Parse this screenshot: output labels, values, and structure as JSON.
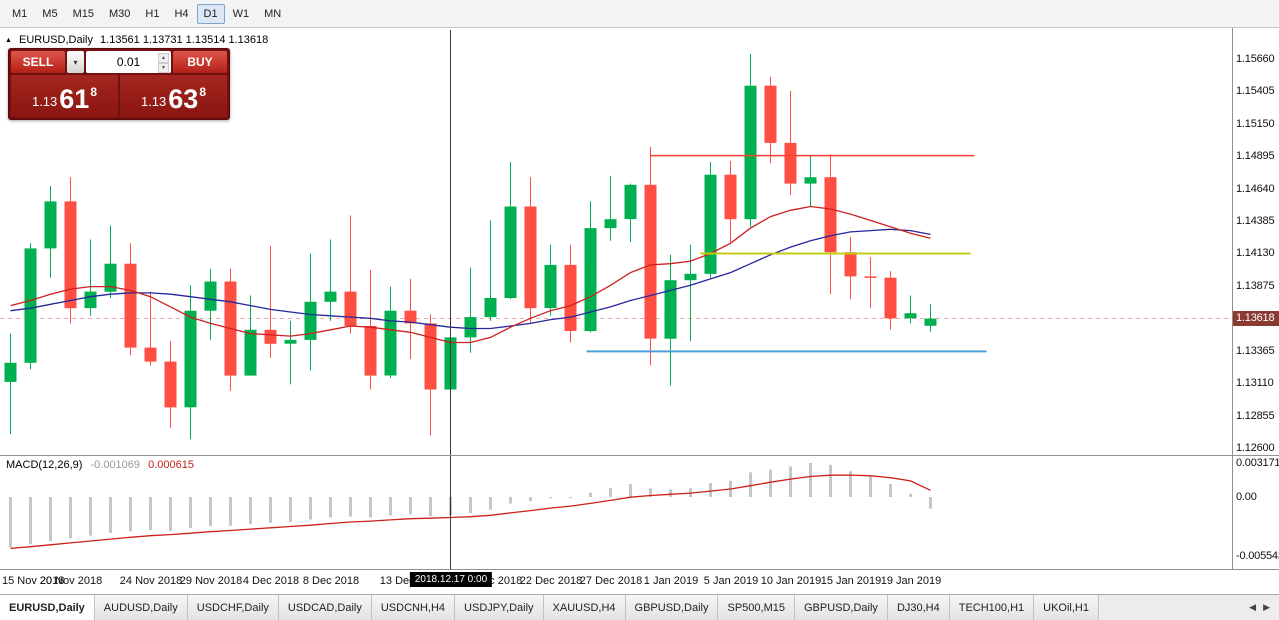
{
  "toolbar": {
    "timeframes": [
      "M1",
      "M5",
      "M15",
      "M30",
      "H1",
      "H4",
      "D1",
      "W1",
      "MN"
    ],
    "active": "D1"
  },
  "chart": {
    "symbol_label": "EURUSD,Daily",
    "ohlc_text": "1.13561 1.13731 1.13514 1.13618"
  },
  "trade_panel": {
    "sell_label": "SELL",
    "buy_label": "BUY",
    "lot": "0.01",
    "sell_price": {
      "base": "1.13",
      "pips": "61",
      "point": "8"
    },
    "buy_price": {
      "base": "1.13",
      "pips": "63",
      "point": "8"
    }
  },
  "macd_label": {
    "name": "MACD(12,26,9)",
    "main": "-0.001069",
    "signal": "0.000615"
  },
  "price_axis_ticks": [
    {
      "t": "1.15660",
      "v": 1.1566
    },
    {
      "t": "1.15405",
      "v": 1.15405
    },
    {
      "t": "1.15150",
      "v": 1.1515
    },
    {
      "t": "1.14895",
      "v": 1.14895
    },
    {
      "t": "1.14640",
      "v": 1.1464
    },
    {
      "t": "1.14385",
      "v": 1.14385
    },
    {
      "t": "1.14130",
      "v": 1.1413
    },
    {
      "t": "1.13875",
      "v": 1.13875
    },
    {
      "t": "1.13365",
      "v": 1.13365
    },
    {
      "t": "1.13110",
      "v": 1.1311
    },
    {
      "t": "1.12855",
      "v": 1.12855
    },
    {
      "t": "1.12600",
      "v": 1.126
    }
  ],
  "price_badge": {
    "t": "1.13618",
    "v": 1.13618,
    "bg": "#8b3a32"
  },
  "macd_axis_ticks": [
    {
      "t": "0.003171",
      "v": 0.003171
    },
    {
      "t": "0.00",
      "v": 0
    },
    {
      "t": "-0.005543",
      "v": -0.005543
    }
  ],
  "time_axis": {
    "labels": [
      {
        "i": 0,
        "t": "15 Nov 2018"
      },
      {
        "i": 3,
        "t": "20 Nov 2018"
      },
      {
        "i": 7,
        "t": "24 Nov 2018"
      },
      {
        "i": 10,
        "t": "29 Nov 2018"
      },
      {
        "i": 13,
        "t": "4 Dec 2018"
      },
      {
        "i": 16,
        "t": "8 Dec 2018"
      },
      {
        "i": 20,
        "t": "13 Dec 2018"
      },
      {
        "i": 24,
        "t": "19 Dec 2018"
      },
      {
        "i": 27,
        "t": "22 Dec 2018"
      },
      {
        "i": 30,
        "t": "27 Dec 2018"
      },
      {
        "i": 33,
        "t": "1 Jan 2019"
      },
      {
        "i": 36,
        "t": "5 Jan 2019"
      },
      {
        "i": 39,
        "t": "10 Jan 2019"
      },
      {
        "i": 42,
        "t": "15 Jan 2019"
      },
      {
        "i": 45,
        "t": "19 Jan 2019"
      }
    ]
  },
  "tabs": [
    {
      "label": "EURUSD,Daily",
      "active": true
    },
    {
      "label": "AUDUSD,Daily"
    },
    {
      "label": "USDCHF,Daily"
    },
    {
      "label": "USDCAD,Daily"
    },
    {
      "label": "USDCNH,H4"
    },
    {
      "label": "USDJPY,Daily"
    },
    {
      "label": "XAUUSD,H4"
    },
    {
      "label": "GBPUSD,Daily"
    },
    {
      "label": "SP500,M15"
    },
    {
      "label": "GBPUSD,Daily"
    },
    {
      "label": "DJ30,H4"
    },
    {
      "label": "TECH100,H1"
    },
    {
      "label": "UKOil,H1"
    }
  ],
  "icons": {
    "collapse": "▲",
    "caret_down": "▾",
    "spin_up": "▴",
    "spin_down": "▾",
    "arrow_left": "◀",
    "arrow_right": "▶"
  },
  "chart_data": {
    "type": "candlestick",
    "symbol": "EURUSD",
    "timeframe": "Daily",
    "title": "EURUSD,Daily",
    "current_price": 1.13618,
    "price_axis": {
      "top": 1.15888,
      "bottom": 1.12545
    },
    "macd_axis": {
      "top": 0.00382,
      "bottom": -0.00672
    },
    "colors": {
      "bull": "#00b050",
      "bear": "#ff4f42",
      "ma_fast": "#cc2020",
      "ma_slow": "#26269c",
      "macd_hist": "#c6c6c6",
      "macd_signal": "#cc2018",
      "bid_line": "#e89090"
    },
    "columns": [
      "date",
      "open",
      "high",
      "low",
      "close"
    ],
    "candles": [
      [
        "2018-11-15",
        1.1312,
        1.135,
        1.1271,
        1.1327
      ],
      [
        "2018-11-16",
        1.1327,
        1.1421,
        1.1322,
        1.1417
      ],
      [
        "2018-11-19",
        1.1417,
        1.1466,
        1.1394,
        1.1454
      ],
      [
        "2018-11-20",
        1.1454,
        1.1473,
        1.1358,
        1.137
      ],
      [
        "2018-11-21",
        1.137,
        1.1424,
        1.1364,
        1.1383
      ],
      [
        "2018-11-22",
        1.1383,
        1.1435,
        1.1378,
        1.1405
      ],
      [
        "2018-11-23",
        1.1405,
        1.1421,
        1.1333,
        1.1339
      ],
      [
        "2018-11-26",
        1.1339,
        1.1383,
        1.1325,
        1.1328
      ],
      [
        "2018-11-27",
        1.1328,
        1.1344,
        1.1276,
        1.1292
      ],
      [
        "2018-11-28",
        1.1292,
        1.1388,
        1.1267,
        1.1368
      ],
      [
        "2018-11-29",
        1.1368,
        1.1401,
        1.1345,
        1.1391
      ],
      [
        "2018-11-30",
        1.1391,
        1.1401,
        1.1305,
        1.1317
      ],
      [
        "2018-12-03",
        1.1317,
        1.138,
        1.1317,
        1.1353
      ],
      [
        "2018-12-04",
        1.1353,
        1.1419,
        1.1331,
        1.1342
      ],
      [
        "2018-12-05",
        1.1342,
        1.136,
        1.131,
        1.1345
      ],
      [
        "2018-12-06",
        1.1345,
        1.1413,
        1.1321,
        1.1375
      ],
      [
        "2018-12-07",
        1.1375,
        1.1424,
        1.136,
        1.1383
      ],
      [
        "2018-12-10",
        1.1383,
        1.1443,
        1.135,
        1.1356
      ],
      [
        "2018-12-11",
        1.1356,
        1.14,
        1.1306,
        1.1317
      ],
      [
        "2018-12-12",
        1.1317,
        1.1387,
        1.1315,
        1.1368
      ],
      [
        "2018-12-13",
        1.1368,
        1.1393,
        1.133,
        1.1358
      ],
      [
        "2018-12-14",
        1.1358,
        1.1365,
        1.127,
        1.1306
      ],
      [
        "2018-12-17",
        1.1306,
        1.1358,
        1.1301,
        1.1347
      ],
      [
        "2018-12-18",
        1.1347,
        1.1402,
        1.1335,
        1.1363
      ],
      [
        "2018-12-19",
        1.1363,
        1.1439,
        1.136,
        1.1378
      ],
      [
        "2018-12-20",
        1.1378,
        1.1485,
        1.1377,
        1.145
      ],
      [
        "2018-12-21",
        1.145,
        1.1473,
        1.1358,
        1.137
      ],
      [
        "2018-12-24",
        1.137,
        1.142,
        1.1364,
        1.1404
      ],
      [
        "2018-12-26",
        1.1404,
        1.142,
        1.1343,
        1.1352
      ],
      [
        "2018-12-27",
        1.1352,
        1.1454,
        1.1351,
        1.1433
      ],
      [
        "2018-12-28",
        1.1433,
        1.1474,
        1.1423,
        1.144
      ],
      [
        "2018-12-31",
        1.144,
        1.1468,
        1.1422,
        1.1467
      ],
      [
        "2019-01-02",
        1.1467,
        1.1497,
        1.1325,
        1.1346
      ],
      [
        "2019-01-03",
        1.1346,
        1.1412,
        1.1309,
        1.1392
      ],
      [
        "2019-01-04",
        1.1392,
        1.142,
        1.1344,
        1.1397
      ],
      [
        "2019-01-07",
        1.1397,
        1.1485,
        1.1394,
        1.1475
      ],
      [
        "2019-01-08",
        1.1475,
        1.1486,
        1.1422,
        1.144
      ],
      [
        "2019-01-09",
        1.144,
        1.157,
        1.1434,
        1.1545
      ],
      [
        "2019-01-10",
        1.1545,
        1.1552,
        1.1484,
        1.15
      ],
      [
        "2019-01-11",
        1.15,
        1.1541,
        1.1459,
        1.1468
      ],
      [
        "2019-01-14",
        1.1468,
        1.149,
        1.145,
        1.1473
      ],
      [
        "2019-01-15",
        1.1473,
        1.1491,
        1.1381,
        1.1414
      ],
      [
        "2019-01-16",
        1.1414,
        1.1426,
        1.1377,
        1.1395
      ],
      [
        "2019-01-17",
        1.1395,
        1.141,
        1.137,
        1.1394
      ],
      [
        "2019-01-18",
        1.1394,
        1.1399,
        1.1353,
        1.1362
      ],
      [
        "2019-01-21",
        1.1362,
        1.138,
        1.1358,
        1.1366
      ],
      [
        "2019-01-22",
        1.13561,
        1.13731,
        1.13514,
        1.13618
      ]
    ],
    "ma_fast": [
      1.1372,
      1.1376,
      1.1381,
      1.1385,
      1.1387,
      1.1387,
      1.1384,
      1.1379,
      1.1371,
      1.1363,
      1.1358,
      1.1354,
      1.135,
      1.1349,
      1.1348,
      1.135,
      1.1353,
      1.1356,
      1.1355,
      1.1353,
      1.1351,
      1.1347,
      1.1343,
      1.1343,
      1.1347,
      1.1355,
      1.1362,
      1.1368,
      1.1372,
      1.1379,
      1.1388,
      1.1398,
      1.1404,
      1.1405,
      1.1407,
      1.1413,
      1.1421,
      1.1433,
      1.1442,
      1.1447,
      1.145,
      1.1448,
      1.1444,
      1.1439,
      1.1434,
      1.1429,
      1.1425
    ],
    "ma_slow": [
      1.1368,
      1.137,
      1.1373,
      1.1376,
      1.1379,
      1.1381,
      1.1382,
      1.1382,
      1.1381,
      1.1379,
      1.1377,
      1.1375,
      1.1372,
      1.1369,
      1.1367,
      1.1365,
      1.1364,
      1.1363,
      1.1362,
      1.136,
      1.1359,
      1.1357,
      1.1355,
      1.1354,
      1.1354,
      1.1356,
      1.1358,
      1.1361,
      1.1363,
      1.1367,
      1.1371,
      1.1376,
      1.138,
      1.1384,
      1.1388,
      1.1393,
      1.1398,
      1.1405,
      1.1412,
      1.1418,
      1.1423,
      1.1427,
      1.143,
      1.1431,
      1.1432,
      1.1431,
      1.1428
    ],
    "levels": [
      {
        "name": "resistance",
        "price": 1.149,
        "from": 32,
        "to": 48.2,
        "color": "#ff3c32",
        "width": 1.5
      },
      {
        "name": "mid-level",
        "price": 1.1413,
        "from": 34.5,
        "to": 48,
        "color": "#c3cc14",
        "width": 2
      },
      {
        "name": "support",
        "price": 1.1336,
        "from": 28.8,
        "to": 48.8,
        "color": "#4a9fd8",
        "width": 2
      }
    ],
    "macd": {
      "params": "12,26,9",
      "main_current": -0.001069,
      "signal_current": 0.000615,
      "main": [
        -0.0047,
        -0.0044,
        -0.0041,
        -0.00385,
        -0.0036,
        -0.00335,
        -0.0032,
        -0.00308,
        -0.00315,
        -0.0029,
        -0.00272,
        -0.00268,
        -0.0025,
        -0.00242,
        -0.0023,
        -0.0021,
        -0.0019,
        -0.00182,
        -0.0019,
        -0.00172,
        -0.0016,
        -0.0018,
        -0.0017,
        -0.0015,
        -0.00118,
        -0.00062,
        -0.0004,
        -0.00012,
        -0.0001,
        0.0004,
        0.00082,
        0.0012,
        0.0008,
        0.0007,
        0.00082,
        0.0013,
        0.00152,
        0.0023,
        0.00255,
        0.00285,
        0.00317,
        0.003,
        0.0024,
        0.0019,
        0.0012,
        0.0003,
        -0.00107
      ],
      "signal": [
        -0.0048,
        -0.00464,
        -0.00446,
        -0.00429,
        -0.00411,
        -0.00393,
        -0.00376,
        -0.00361,
        -0.00351,
        -0.00338,
        -0.00324,
        -0.00313,
        -0.003,
        -0.00288,
        -0.00276,
        -0.00263,
        -0.00248,
        -0.00234,
        -0.00225,
        -0.00214,
        -0.00203,
        -0.00198,
        -0.00192,
        -0.00184,
        -0.00171,
        -0.00149,
        -0.00127,
        -0.00104,
        -0.00085,
        -0.0006,
        -0.00032,
        -2e-05,
        0.00014,
        0.00025,
        0.00036,
        0.00055,
        0.00074,
        0.00105,
        0.00138,
        0.00167,
        0.00191,
        0.00203,
        0.00204,
        0.00197,
        0.0018,
        0.0015,
        0.00062
      ]
    },
    "crosshair": {
      "index": 22,
      "label": "2018.12.17 0:00"
    }
  }
}
